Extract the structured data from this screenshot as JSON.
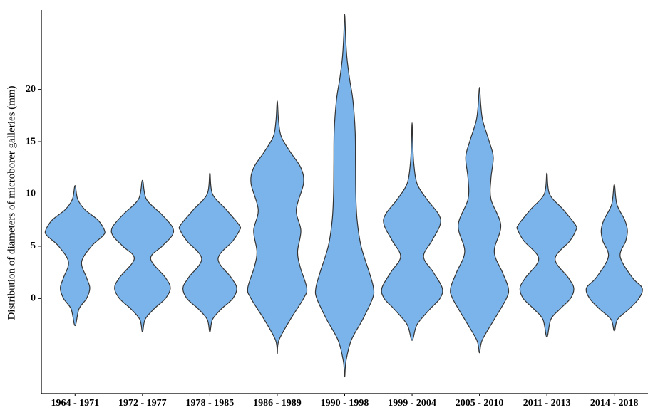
{
  "chart_data": {
    "type": "violin",
    "y_label": "Distribution of  diameters  of microborer galleries (mm)",
    "categories": [
      "1964 - 1971",
      "1972 - 1977",
      "1978 - 1985",
      "1986 - 1989",
      "1990 - 1998",
      "1999 - 2004",
      "2005 - 2010",
      "2011 - 2013",
      "2014 - 2018"
    ],
    "color": "#7ab4ea",
    "ylim": [
      -9.1,
      27.6
    ],
    "yticks": [
      0,
      5,
      10,
      15,
      20
    ],
    "violins": [
      {
        "y": [
          -2.6,
          -1,
          0,
          1,
          2,
          3.5,
          5,
          6,
          6.5,
          7.5,
          8.5,
          9.5,
          10.8
        ],
        "density": [
          0,
          0.12,
          0.35,
          0.45,
          0.35,
          0.2,
          0.5,
          0.85,
          0.9,
          0.7,
          0.3,
          0.08,
          0
        ]
      },
      {
        "y": [
          -3.2,
          -2,
          -1,
          0,
          1,
          2,
          3.8,
          5,
          6,
          6.8,
          8,
          9.5,
          11.3
        ],
        "density": [
          0,
          0.08,
          0.35,
          0.7,
          0.85,
          0.7,
          0.25,
          0.6,
          0.9,
          0.92,
          0.6,
          0.12,
          0
        ]
      },
      {
        "y": [
          -3.2,
          -2,
          -1,
          0,
          1,
          2,
          3.8,
          5.5,
          6.5,
          7,
          8.5,
          10,
          12
        ],
        "density": [
          0,
          0.08,
          0.35,
          0.7,
          0.82,
          0.65,
          0.25,
          0.7,
          0.9,
          0.9,
          0.5,
          0.08,
          0
        ]
      },
      {
        "y": [
          -5.3,
          -4,
          -2,
          0,
          1,
          3,
          4.5,
          6.5,
          8.5,
          11,
          12.5,
          14,
          15.5,
          17,
          18.9
        ],
        "density": [
          0,
          0.05,
          0.4,
          0.8,
          0.9,
          0.7,
          0.62,
          0.72,
          0.58,
          0.8,
          0.72,
          0.4,
          0.12,
          0.04,
          0
        ]
      },
      {
        "y": [
          -7.5,
          -6,
          -4,
          -2,
          0,
          1,
          2.5,
          5,
          7.5,
          10,
          13,
          16,
          19,
          21,
          23,
          25,
          27.2
        ],
        "density": [
          0,
          0.04,
          0.2,
          0.55,
          0.85,
          0.88,
          0.75,
          0.5,
          0.38,
          0.34,
          0.33,
          0.32,
          0.25,
          0.15,
          0.07,
          0.03,
          0
        ]
      },
      {
        "y": [
          -4,
          -2.5,
          -1,
          0,
          1,
          2.5,
          4,
          5.5,
          7,
          8,
          9.5,
          11,
          13,
          15,
          16.8
        ],
        "density": [
          0,
          0.15,
          0.55,
          0.85,
          0.92,
          0.65,
          0.35,
          0.6,
          0.85,
          0.82,
          0.45,
          0.15,
          0.05,
          0.02,
          0
        ]
      },
      {
        "y": [
          -5.2,
          -4,
          -2,
          0,
          1,
          2.5,
          4.5,
          7,
          9.5,
          11.5,
          13.5,
          15,
          17,
          18.5,
          20.2
        ],
        "density": [
          0,
          0.08,
          0.45,
          0.82,
          0.88,
          0.7,
          0.45,
          0.65,
          0.35,
          0.35,
          0.42,
          0.3,
          0.1,
          0.04,
          0
        ]
      },
      {
        "y": [
          -3.7,
          -2,
          -1,
          0,
          1,
          2,
          3.8,
          5.5,
          6.5,
          7,
          8.5,
          10,
          12
        ],
        "density": [
          0,
          0.12,
          0.4,
          0.72,
          0.82,
          0.65,
          0.25,
          0.7,
          0.88,
          0.88,
          0.5,
          0.08,
          0
        ]
      },
      {
        "y": [
          -3.1,
          -2,
          -1,
          0,
          1,
          2,
          4,
          5.5,
          6.5,
          7.5,
          9,
          10.9
        ],
        "density": [
          0,
          0.1,
          0.45,
          0.75,
          0.85,
          0.55,
          0.18,
          0.35,
          0.4,
          0.32,
          0.08,
          0
        ]
      }
    ]
  }
}
